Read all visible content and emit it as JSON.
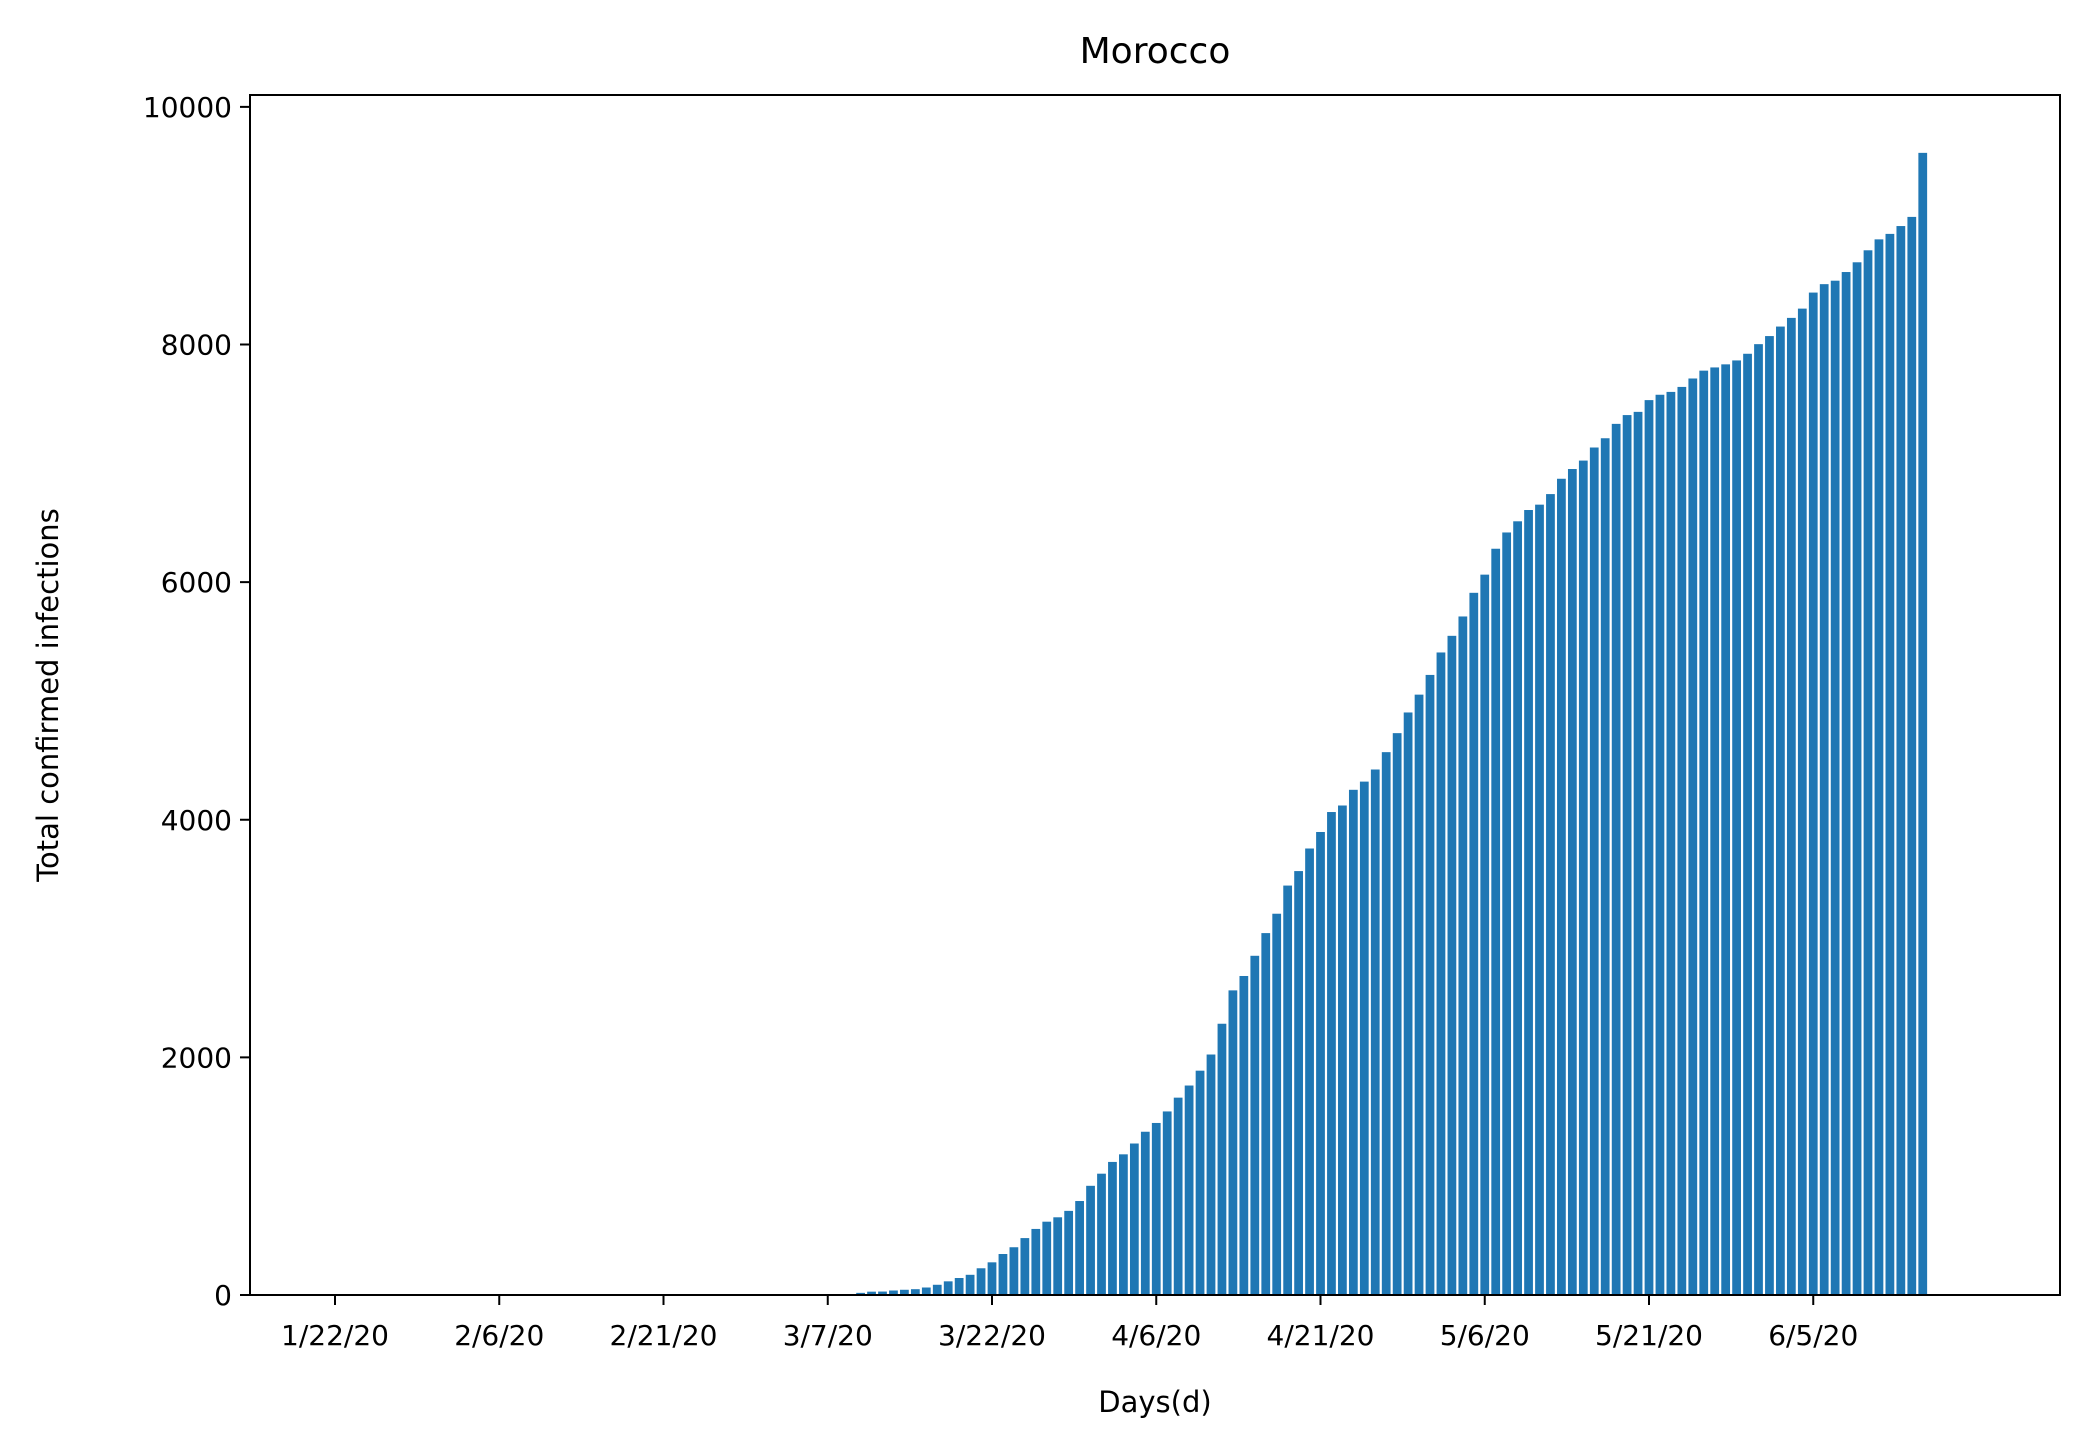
{
  "chart_data": {
    "type": "bar",
    "title": "Morocco",
    "xlabel": "Days(d)",
    "ylabel": "Total confirmed infections",
    "bar_color": "#1f77b4",
    "grid": false,
    "legend": "none",
    "ylim": [
      0,
      10100
    ],
    "yticks": [
      0,
      2000,
      4000,
      6000,
      8000,
      10000
    ],
    "xtick_labels": [
      "1/22/20",
      "2/6/20",
      "2/21/20",
      "3/7/20",
      "3/22/20",
      "4/6/20",
      "4/21/20",
      "5/6/20",
      "5/21/20",
      "6/5/20"
    ],
    "start_date": "1/22/20",
    "values": [
      0,
      0,
      0,
      0,
      0,
      0,
      0,
      0,
      0,
      0,
      0,
      0,
      0,
      0,
      0,
      0,
      0,
      0,
      0,
      0,
      0,
      0,
      0,
      0,
      0,
      0,
      0,
      0,
      0,
      0,
      0,
      0,
      0,
      0,
      0,
      0,
      0,
      0,
      0,
      0,
      1,
      1,
      2,
      2,
      3,
      3,
      6,
      7,
      18,
      28,
      29,
      38,
      44,
      49,
      63,
      86,
      115,
      143,
      170,
      225,
      275,
      345,
      402,
      479,
      556,
      617,
      654,
      708,
      791,
      919,
      1021,
      1120,
      1184,
      1275,
      1374,
      1448,
      1545,
      1661,
      1763,
      1888,
      2024,
      2283,
      2564,
      2685,
      2855,
      3046,
      3209,
      3446,
      3568,
      3758,
      3897,
      4065,
      4120,
      4252,
      4321,
      4423,
      4569,
      4729,
      4903,
      5053,
      5219,
      5408,
      5548,
      5711,
      5910,
      6063,
      6281,
      6418,
      6512,
      6607,
      6652,
      6741,
      6870,
      6952,
      7023,
      7133,
      7211,
      7332,
      7406,
      7433,
      7532,
      7577,
      7601,
      7643,
      7714,
      7780,
      7807,
      7833,
      7866,
      7922,
      8003,
      8071,
      8151,
      8224,
      8302,
      8437,
      8508,
      8537,
      8610,
      8692,
      8793,
      8885,
      8931,
      8997,
      9074,
      9613
    ]
  }
}
